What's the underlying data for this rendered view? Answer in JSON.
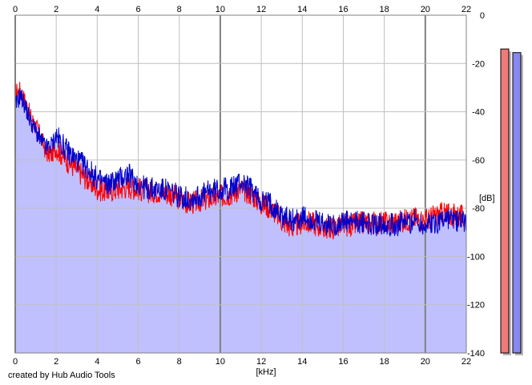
{
  "credit": "created by Hub Audio Tools",
  "chart_data": {
    "type": "line",
    "xlabel": "[kHz]",
    "ylabel": "[dB]",
    "xlim": [
      0,
      22
    ],
    "ylim": [
      -140,
      0
    ],
    "x_ticks": [
      0,
      2,
      4,
      6,
      8,
      10,
      12,
      14,
      16,
      18,
      20,
      22
    ],
    "y_ticks": [
      0,
      -20,
      -40,
      -60,
      -80,
      -100,
      -120,
      -140
    ],
    "grid": true,
    "colors": {
      "fill": "#c0c0ff",
      "red_series": "#ff0000",
      "blue_series": "#0000cc",
      "grid_minor": "#c0c0c0",
      "grid_major": "#808080",
      "meter_left_fill": "#ef7a7a",
      "meter_right_fill": "#8888ee"
    },
    "series": [
      {
        "color": "red",
        "x": [
          0,
          0.25,
          0.5,
          0.75,
          1,
          1.25,
          1.5,
          1.75,
          2,
          2.5,
          3,
          3.5,
          4,
          4.5,
          5,
          5.5,
          6,
          6.5,
          7,
          7.5,
          8,
          8.5,
          9,
          9.5,
          10,
          10.5,
          11,
          11.5,
          12,
          12.5,
          13,
          13.5,
          14,
          14.5,
          15,
          15.5,
          16,
          16.5,
          17,
          17.5,
          18,
          18.5,
          19,
          19.5,
          20,
          20.5,
          21,
          21.5,
          22
        ],
        "values": [
          -32,
          -31,
          -36,
          -42,
          -46,
          -50,
          -57,
          -58,
          -55,
          -60,
          -64,
          -68,
          -72,
          -73,
          -72,
          -71,
          -72,
          -73,
          -73,
          -74,
          -76,
          -78,
          -77,
          -76,
          -75,
          -74,
          -72,
          -74,
          -78,
          -80,
          -85,
          -88,
          -86,
          -86,
          -88,
          -88,
          -87,
          -87,
          -86,
          -86,
          -86,
          -86,
          -85,
          -84,
          -85,
          -83,
          -82,
          -83,
          -84
        ]
      },
      {
        "color": "blue",
        "x": [
          0,
          0.25,
          0.5,
          0.75,
          1,
          1.25,
          1.5,
          1.75,
          2,
          2.5,
          3,
          3.5,
          4,
          4.5,
          5,
          5.5,
          6,
          6.5,
          7,
          7.5,
          8,
          8.5,
          9,
          9.5,
          10,
          10.5,
          11,
          11.5,
          12,
          12.5,
          13,
          13.5,
          14,
          14.5,
          15,
          15.5,
          16,
          16.5,
          17,
          17.5,
          18,
          18.5,
          19,
          19.5,
          20,
          20.5,
          21,
          21.5,
          22
        ],
        "values": [
          -38,
          -33,
          -38,
          -44,
          -48,
          -52,
          -55,
          -54,
          -50,
          -56,
          -60,
          -63,
          -68,
          -70,
          -68,
          -66,
          -70,
          -72,
          -72,
          -73,
          -75,
          -76,
          -75,
          -73,
          -72,
          -72,
          -69,
          -72,
          -77,
          -78,
          -83,
          -85,
          -84,
          -85,
          -87,
          -87,
          -86,
          -86,
          -86,
          -87,
          -86,
          -87,
          -86,
          -85,
          -87,
          -86,
          -84,
          -85,
          -85
        ]
      }
    ],
    "meters": [
      {
        "color": "red",
        "value": -14
      },
      {
        "color": "blue",
        "value": -15.5
      }
    ]
  }
}
